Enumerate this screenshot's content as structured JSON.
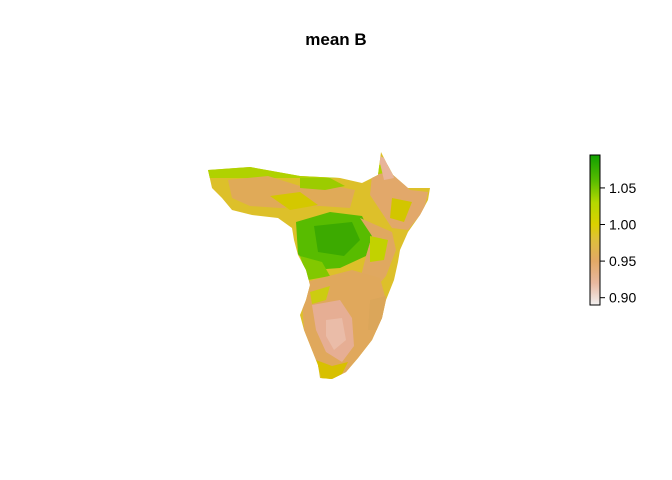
{
  "title": "mean B",
  "map": {
    "region": "Africa (south-eastern)",
    "palette": [
      "#f2e8e4",
      "#e5a882",
      "#e0b060",
      "#dcc000",
      "#c8d400",
      "#8fcc00",
      "#3cae00",
      "#1a9a00"
    ]
  },
  "legend": {
    "min": 0.89,
    "max": 1.095,
    "ticks": [
      {
        "value": 0.9,
        "label": "0.90"
      },
      {
        "value": 0.95,
        "label": "0.95"
      },
      {
        "value": 1.0,
        "label": "1.00"
      },
      {
        "value": 1.05,
        "label": "1.05"
      }
    ],
    "colors": [
      {
        "value": 0.89,
        "color": "#f2f0f0"
      },
      {
        "value": 0.92,
        "color": "#e8b8a0"
      },
      {
        "value": 0.95,
        "color": "#e2a866"
      },
      {
        "value": 0.98,
        "color": "#dec03a"
      },
      {
        "value": 1.0,
        "color": "#dcd000"
      },
      {
        "value": 1.03,
        "color": "#b4d800"
      },
      {
        "value": 1.06,
        "color": "#58bc00"
      },
      {
        "value": 1.095,
        "color": "#10a000"
      }
    ]
  }
}
